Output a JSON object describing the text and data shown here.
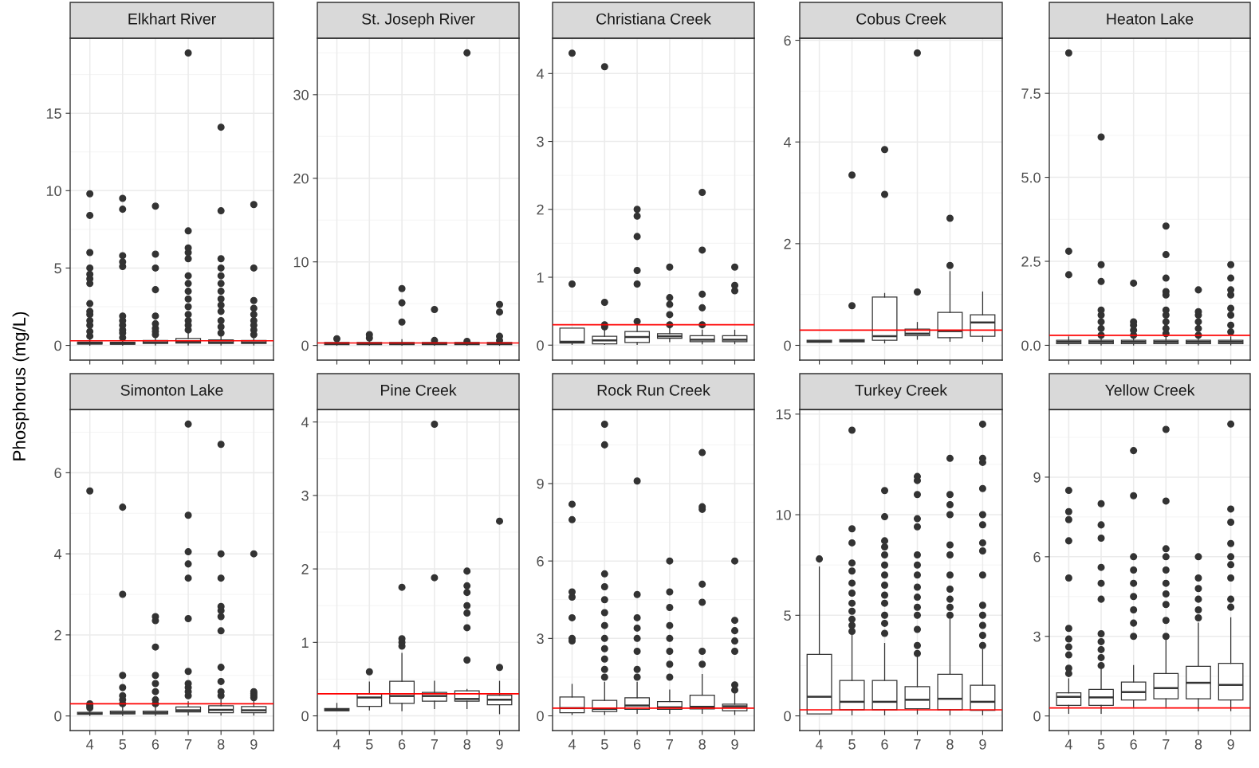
{
  "chart_data": [
    {
      "type": "box",
      "title": "Elkhart River",
      "ylabel": "Phosphorus (mg/L)",
      "categories": [
        "4",
        "5",
        "6",
        "7",
        "8",
        "9"
      ],
      "tick_labels": "y",
      "ylim": [
        -0.95,
        19.85
      ],
      "yticks": [
        0,
        5,
        10,
        15
      ],
      "grid": true,
      "ref_lines": [
        {
          "axis": "y",
          "value": 0.3,
          "color": "#ff0000"
        }
      ],
      "boxes": [
        {
          "low": 0.01,
          "q1": 0.08,
          "median": 0.13,
          "q3": 0.22,
          "high": 0.42,
          "outliers": [
            0.6,
            0.9,
            1.3,
            1.6,
            2.0,
            2.2,
            2.7,
            4.0,
            4.3,
            4.6,
            5.0,
            6.0,
            8.4,
            9.8
          ]
        },
        {
          "low": 0.01,
          "q1": 0.07,
          "median": 0.12,
          "q3": 0.2,
          "high": 0.38,
          "outliers": [
            0.5,
            0.8,
            1.0,
            1.3,
            1.6,
            1.9,
            5.1,
            5.4,
            5.8,
            8.8,
            9.5
          ]
        },
        {
          "low": 0.02,
          "q1": 0.12,
          "median": 0.2,
          "q3": 0.32,
          "high": 0.6,
          "outliers": [
            0.7,
            0.9,
            1.1,
            1.4,
            1.9,
            3.6,
            5.0,
            5.9,
            9.0
          ]
        },
        {
          "low": 0.02,
          "q1": 0.15,
          "median": 0.25,
          "q3": 0.45,
          "high": 0.9,
          "outliers": [
            1.0,
            1.3,
            1.6,
            2.0,
            2.5,
            3.0,
            3.5,
            4.0,
            4.5,
            5.6,
            6.0,
            6.3,
            7.4,
            18.9
          ]
        },
        {
          "low": 0.02,
          "q1": 0.12,
          "median": 0.2,
          "q3": 0.35,
          "high": 0.7,
          "outliers": [
            0.8,
            1.2,
            1.6,
            2.2,
            2.6,
            3.0,
            3.5,
            4.0,
            4.5,
            5.0,
            5.6,
            8.7,
            14.1
          ]
        },
        {
          "low": 0.02,
          "q1": 0.12,
          "median": 0.2,
          "q3": 0.32,
          "high": 0.6,
          "outliers": [
            0.7,
            1.0,
            1.3,
            1.6,
            2.0,
            2.4,
            2.9,
            5.0,
            9.1
          ]
        }
      ]
    },
    {
      "type": "box",
      "title": "St. Joseph River",
      "categories": [
        "4",
        "5",
        "6",
        "7",
        "8",
        "9"
      ],
      "tick_labels": "y",
      "ylim": [
        -1.75,
        36.75
      ],
      "yticks": [
        0,
        10,
        20,
        30
      ],
      "grid": true,
      "ref_lines": [
        {
          "axis": "y",
          "value": 0.3,
          "color": "#ff0000"
        }
      ],
      "boxes": [
        {
          "low": 0.02,
          "q1": 0.1,
          "median": 0.2,
          "q3": 0.35,
          "high": 0.7,
          "outliers": [
            0.8
          ]
        },
        {
          "low": 0.02,
          "q1": 0.1,
          "median": 0.2,
          "q3": 0.35,
          "high": 0.7,
          "outliers": [
            0.9,
            1.3
          ]
        },
        {
          "low": 0.02,
          "q1": 0.1,
          "median": 0.2,
          "q3": 0.35,
          "high": 0.7,
          "outliers": [
            2.8,
            5.1,
            6.8
          ]
        },
        {
          "low": 0.02,
          "q1": 0.1,
          "median": 0.2,
          "q3": 0.35,
          "high": 0.5,
          "outliers": [
            0.6,
            4.3
          ]
        },
        {
          "low": 0.02,
          "q1": 0.1,
          "median": 0.2,
          "q3": 0.35,
          "high": 0.45,
          "outliers": [
            0.5,
            35
          ]
        },
        {
          "low": 0.02,
          "q1": 0.1,
          "median": 0.2,
          "q3": 0.35,
          "high": 0.5,
          "outliers": [
            0.6,
            1.1,
            4.0,
            4.9
          ]
        }
      ]
    },
    {
      "type": "box",
      "title": "Christiana Creek",
      "categories": [
        "4",
        "5",
        "6",
        "7",
        "8",
        "9"
      ],
      "tick_labels": "y",
      "ylim": [
        -0.22,
        4.52
      ],
      "yticks": [
        0,
        1,
        2,
        3,
        4
      ],
      "grid": true,
      "ref_lines": [
        {
          "axis": "y",
          "value": 0.3,
          "color": "#ff0000"
        }
      ],
      "boxes": [
        {
          "low": 0.01,
          "q1": 0.03,
          "median": 0.05,
          "q3": 0.25,
          "high": 0.25,
          "outliers": [
            0.9,
            4.3
          ]
        },
        {
          "low": 0.01,
          "q1": 0.02,
          "median": 0.07,
          "q3": 0.13,
          "high": 0.25,
          "outliers": [
            0.27,
            0.3,
            0.63,
            4.1
          ]
        },
        {
          "low": 0.01,
          "q1": 0.04,
          "median": 0.12,
          "q3": 0.2,
          "high": 0.3,
          "outliers": [
            0.35,
            0.9,
            1.1,
            1.6,
            1.9,
            2.0
          ]
        },
        {
          "low": 0.05,
          "q1": 0.1,
          "median": 0.13,
          "q3": 0.17,
          "high": 0.25,
          "outliers": [
            0.3,
            0.45,
            0.6,
            0.7,
            1.15
          ]
        },
        {
          "low": 0.02,
          "q1": 0.05,
          "median": 0.08,
          "q3": 0.14,
          "high": 0.22,
          "outliers": [
            0.3,
            0.55,
            0.75,
            1.4,
            2.25
          ]
        },
        {
          "low": 0.02,
          "q1": 0.05,
          "median": 0.08,
          "q3": 0.14,
          "high": 0.22,
          "outliers": [
            0.8,
            0.88,
            1.15
          ]
        }
      ]
    },
    {
      "type": "box",
      "title": "Cobus Creek",
      "categories": [
        "4",
        "5",
        "6",
        "7",
        "8",
        "9"
      ],
      "tick_labels": "y",
      "ylim": [
        -0.29,
        6.04
      ],
      "yticks": [
        0,
        2,
        4,
        6
      ],
      "grid": true,
      "ref_lines": [
        {
          "axis": "y",
          "value": 0.3,
          "color": "#ff0000"
        }
      ],
      "boxes": [
        {
          "low": 0.06,
          "q1": 0.06,
          "median": 0.08,
          "q3": 0.1,
          "high": 0.1
        },
        {
          "low": 0.07,
          "q1": 0.07,
          "median": 0.09,
          "q3": 0.11,
          "high": 0.11,
          "outliers": [
            0.78,
            3.35
          ]
        },
        {
          "low": 0.05,
          "q1": 0.1,
          "median": 0.18,
          "q3": 0.95,
          "high": 1.02,
          "outliers": [
            2.97,
            3.85
          ]
        },
        {
          "low": 0.12,
          "q1": 0.19,
          "median": 0.23,
          "q3": 0.32,
          "high": 0.45,
          "outliers": [
            1.05,
            5.75
          ]
        },
        {
          "low": 0.08,
          "q1": 0.15,
          "median": 0.28,
          "q3": 0.65,
          "high": 1.45,
          "outliers": [
            1.57,
            2.5
          ]
        },
        {
          "low": 0.08,
          "q1": 0.18,
          "median": 0.45,
          "q3": 0.6,
          "high": 1.05
        }
      ]
    },
    {
      "type": "box",
      "title": "Heaton Lake",
      "categories": [
        "4",
        "5",
        "6",
        "7",
        "8",
        "9"
      ],
      "tick_labels": "y",
      "ylim": [
        -0.44,
        9.14
      ],
      "yticks": [
        {
          "value": 0,
          "label": "0.0"
        },
        {
          "value": 2.5,
          "label": "2.5"
        },
        {
          "value": 5,
          "label": "5.0"
        },
        {
          "value": 7.5,
          "label": "7.5"
        }
      ],
      "grid": true,
      "ref_lines": [
        {
          "axis": "y",
          "value": 0.3,
          "color": "#ff0000"
        }
      ],
      "boxes": [
        {
          "low": 0.01,
          "q1": 0.05,
          "median": 0.1,
          "q3": 0.15,
          "high": 0.25,
          "outliers": [
            2.1,
            2.8,
            8.7
          ]
        },
        {
          "low": 0.01,
          "q1": 0.05,
          "median": 0.1,
          "q3": 0.15,
          "high": 0.25,
          "outliers": [
            0.3,
            0.5,
            0.7,
            0.9,
            1.05,
            1.9,
            2.4,
            6.2
          ]
        },
        {
          "low": 0.01,
          "q1": 0.05,
          "median": 0.1,
          "q3": 0.15,
          "high": 0.25,
          "outliers": [
            0.3,
            0.45,
            0.6,
            0.7,
            1.85
          ]
        },
        {
          "low": 0.01,
          "q1": 0.05,
          "median": 0.1,
          "q3": 0.15,
          "high": 0.25,
          "outliers": [
            0.35,
            0.5,
            0.7,
            0.9,
            1.05,
            1.5,
            1.6,
            2.0,
            2.7,
            3.55
          ]
        },
        {
          "low": 0.01,
          "q1": 0.05,
          "median": 0.1,
          "q3": 0.15,
          "high": 0.25,
          "outliers": [
            0.3,
            0.5,
            0.7,
            0.9,
            1.0,
            1.65
          ]
        },
        {
          "low": 0.01,
          "q1": 0.05,
          "median": 0.1,
          "q3": 0.15,
          "high": 0.25,
          "outliers": [
            0.4,
            0.6,
            0.9,
            1.1,
            1.5,
            1.65,
            2.0,
            2.4
          ]
        }
      ]
    },
    {
      "type": "box",
      "title": "Simonton Lake",
      "categories": [
        "4",
        "5",
        "6",
        "7",
        "8",
        "9"
      ],
      "ylim": [
        -0.36,
        7.56
      ],
      "yticks": [
        0,
        2,
        4,
        6
      ],
      "grid": true,
      "ref_lines": [
        {
          "axis": "y",
          "value": 0.3,
          "color": "#ff0000"
        }
      ],
      "boxes": [
        {
          "low": 0.01,
          "q1": 0.04,
          "median": 0.06,
          "q3": 0.09,
          "high": 0.15,
          "outliers": [
            0.2,
            0.25,
            0.3,
            5.55
          ]
        },
        {
          "low": 0.01,
          "q1": 0.05,
          "median": 0.08,
          "q3": 0.12,
          "high": 0.2,
          "outliers": [
            0.3,
            0.4,
            0.5,
            0.7,
            1.0,
            3.0,
            5.15
          ]
        },
        {
          "low": 0.01,
          "q1": 0.05,
          "median": 0.08,
          "q3": 0.12,
          "high": 0.2,
          "outliers": [
            0.3,
            0.4,
            0.6,
            0.8,
            1.0,
            1.7,
            2.35,
            2.45
          ]
        },
        {
          "low": 0.02,
          "q1": 0.1,
          "median": 0.14,
          "q3": 0.22,
          "high": 0.35,
          "outliers": [
            0.5,
            0.6,
            0.7,
            0.8,
            1.1,
            2.4,
            3.4,
            3.75,
            4.05,
            4.95,
            7.2
          ]
        },
        {
          "low": 0.02,
          "q1": 0.08,
          "median": 0.15,
          "q3": 0.25,
          "high": 0.4,
          "outliers": [
            0.5,
            0.6,
            0.85,
            1.2,
            2.1,
            2.45,
            2.6,
            2.7,
            3.4,
            4.0,
            6.7
          ]
        },
        {
          "low": 0.02,
          "q1": 0.08,
          "median": 0.14,
          "q3": 0.23,
          "high": 0.38,
          "outliers": [
            0.45,
            0.5,
            0.55,
            0.6,
            4.0
          ]
        }
      ]
    },
    {
      "type": "box",
      "title": "Pine Creek",
      "categories": [
        "4",
        "5",
        "6",
        "7",
        "8",
        "9"
      ],
      "ylim": [
        -0.2,
        4.17
      ],
      "yticks": [
        0,
        1,
        2,
        3,
        4
      ],
      "grid": true,
      "ref_lines": [
        {
          "axis": "y",
          "value": 0.3,
          "color": "#ff0000"
        }
      ],
      "boxes": [
        {
          "low": 0.07,
          "q1": 0.07,
          "median": 0.08,
          "q3": 0.1,
          "high": 0.17
        },
        {
          "low": 0.08,
          "q1": 0.13,
          "median": 0.25,
          "q3": 0.3,
          "high": 0.46,
          "outliers": [
            0.6
          ]
        },
        {
          "low": 0.07,
          "q1": 0.17,
          "median": 0.27,
          "q3": 0.47,
          "high": 0.85,
          "outliers": [
            0.95,
            1.0,
            1.05,
            1.75
          ]
        },
        {
          "low": 0.1,
          "q1": 0.2,
          "median": 0.27,
          "q3": 0.32,
          "high": 0.47,
          "outliers": [
            1.88,
            3.97
          ]
        },
        {
          "low": 0.1,
          "q1": 0.2,
          "median": 0.23,
          "q3": 0.34,
          "high": 0.36,
          "outliers": [
            0.76,
            1.2,
            1.4,
            1.5,
            1.68,
            1.77,
            1.97
          ]
        },
        {
          "low": 0.03,
          "q1": 0.15,
          "median": 0.22,
          "q3": 0.28,
          "high": 0.47,
          "outliers": [
            0.66,
            2.65
          ]
        }
      ]
    },
    {
      "type": "box",
      "title": "Rock Run Creek",
      "categories": [
        "4",
        "5",
        "6",
        "7",
        "8",
        "9"
      ],
      "ylim": [
        -0.57,
        11.87
      ],
      "yticks": [
        0,
        3,
        6,
        9
      ],
      "grid": true,
      "ref_lines": [
        {
          "axis": "y",
          "value": 0.3,
          "color": "#ff0000"
        }
      ],
      "boxes": [
        {
          "low": 0.05,
          "q1": 0.12,
          "median": 0.3,
          "q3": 0.73,
          "high": 1.22,
          "outliers": [
            2.9,
            3.0,
            3.8,
            4.6,
            4.8,
            7.6,
            8.2
          ]
        },
        {
          "low": 0.05,
          "q1": 0.17,
          "median": 0.27,
          "q3": 0.6,
          "high": 1.3,
          "outliers": [
            1.5,
            1.8,
            2.2,
            2.6,
            3.0,
            3.5,
            4.0,
            4.5,
            5.0,
            5.5,
            10.5,
            11.3
          ]
        },
        {
          "low": 0.1,
          "q1": 0.25,
          "median": 0.4,
          "q3": 0.7,
          "high": 1.3,
          "outliers": [
            1.5,
            1.8,
            2.5,
            3.0,
            3.4,
            3.8,
            4.7,
            9.1
          ]
        },
        {
          "low": 0.1,
          "q1": 0.25,
          "median": 0.33,
          "q3": 0.55,
          "high": 1.0,
          "outliers": [
            1.5,
            2.0,
            2.5,
            3.0,
            3.5,
            4.2,
            4.8,
            6.0
          ]
        },
        {
          "low": 0.1,
          "q1": 0.27,
          "median": 0.35,
          "q3": 0.8,
          "high": 1.6,
          "outliers": [
            2.0,
            2.5,
            4.4,
            5.1,
            8.0,
            8.1,
            10.2
          ]
        },
        {
          "low": 0.05,
          "q1": 0.2,
          "median": 0.37,
          "q3": 0.45,
          "high": 0.85,
          "outliers": [
            1.0,
            1.2,
            2.5,
            2.9,
            3.3,
            3.7,
            6.0
          ]
        }
      ]
    },
    {
      "type": "box",
      "title": "Turkey Creek",
      "categories": [
        "4",
        "5",
        "6",
        "7",
        "8",
        "9"
      ],
      "ylim": [
        -0.73,
        15.23
      ],
      "yticks": [
        0,
        5,
        10,
        15
      ],
      "grid": true,
      "ref_lines": [
        {
          "axis": "y",
          "value": 0.3,
          "color": "#ff0000"
        }
      ],
      "boxes": [
        {
          "low": 0.1,
          "q1": 0.1,
          "median": 0.95,
          "q3": 3.06,
          "high": 7.4,
          "outliers": [
            7.8
          ]
        },
        {
          "low": 0.05,
          "q1": 0.3,
          "median": 0.7,
          "q3": 1.76,
          "high": 4.0,
          "outliers": [
            4.2,
            4.5,
            4.8,
            5.2,
            5.6,
            6.1,
            6.6,
            7.2,
            7.6,
            8.6,
            9.3,
            14.2
          ]
        },
        {
          "low": 0.05,
          "q1": 0.3,
          "median": 0.7,
          "q3": 1.76,
          "high": 3.6,
          "outliers": [
            4.1,
            4.6,
            5.0,
            5.6,
            6.0,
            6.5,
            7.0,
            7.5,
            8.0,
            8.4,
            8.7,
            9.9,
            11.2
          ]
        },
        {
          "low": 0.1,
          "q1": 0.35,
          "median": 0.8,
          "q3": 1.45,
          "high": 3.0,
          "outliers": [
            3.1,
            3.5,
            4.3,
            5.0,
            5.4,
            5.9,
            6.4,
            7.0,
            7.5,
            8.0,
            9.4,
            9.8,
            11.0,
            11.7,
            11.9
          ]
        },
        {
          "low": 0.05,
          "q1": 0.3,
          "median": 0.85,
          "q3": 2.07,
          "high": 4.8,
          "outliers": [
            5.0,
            5.4,
            5.8,
            6.3,
            7.0,
            8.0,
            8.5,
            10.0,
            10.5,
            11.0,
            12.8
          ]
        },
        {
          "low": 0.05,
          "q1": 0.27,
          "median": 0.7,
          "q3": 1.52,
          "high": 3.3,
          "outliers": [
            3.5,
            4.0,
            4.5,
            5.0,
            5.5,
            7.0,
            8.2,
            8.6,
            9.5,
            10.0,
            11.3,
            12.6,
            12.8,
            14.5
          ]
        }
      ]
    },
    {
      "type": "box",
      "title": "Yellow Creek",
      "categories": [
        "4",
        "5",
        "6",
        "7",
        "8",
        "9"
      ],
      "ylim": [
        -0.55,
        11.55
      ],
      "yticks": [
        0,
        3,
        6,
        9
      ],
      "grid": true,
      "ref_lines": [
        {
          "axis": "y",
          "value": 0.3,
          "color": "#ff0000"
        }
      ],
      "boxes": [
        {
          "low": 0.1,
          "q1": 0.4,
          "median": 0.72,
          "q3": 0.87,
          "high": 1.4,
          "outliers": [
            1.6,
            1.8,
            2.3,
            2.6,
            2.9,
            3.3,
            5.2,
            6.6,
            7.4,
            7.7,
            8.5
          ]
        },
        {
          "low": 0.1,
          "q1": 0.4,
          "median": 0.7,
          "q3": 1.0,
          "high": 1.75,
          "outliers": [
            1.9,
            2.2,
            2.5,
            2.8,
            3.1,
            4.4,
            5.0,
            5.6,
            6.7,
            7.2,
            8.0
          ]
        },
        {
          "low": 0.35,
          "q1": 0.6,
          "median": 0.9,
          "q3": 1.28,
          "high": 1.9,
          "outliers": [
            3.0,
            3.5,
            4.0,
            4.5,
            5.0,
            5.5,
            6.0,
            8.3,
            10.0
          ]
        },
        {
          "low": 0.35,
          "q1": 0.65,
          "median": 1.05,
          "q3": 1.6,
          "high": 2.9,
          "outliers": [
            3.0,
            3.6,
            4.2,
            4.6,
            5.0,
            5.5,
            6.0,
            6.3,
            8.1,
            10.8
          ]
        },
        {
          "low": 0.2,
          "q1": 0.65,
          "median": 1.25,
          "q3": 1.87,
          "high": 3.5,
          "outliers": [
            3.7,
            4.0,
            4.4,
            4.8,
            5.2,
            6.0
          ]
        },
        {
          "low": 0.2,
          "q1": 0.6,
          "median": 1.17,
          "q3": 1.98,
          "high": 3.7,
          "outliers": [
            4.1,
            4.4,
            5.2,
            5.7,
            6.0,
            6.5,
            7.3,
            7.8,
            11.0
          ]
        }
      ]
    }
  ]
}
